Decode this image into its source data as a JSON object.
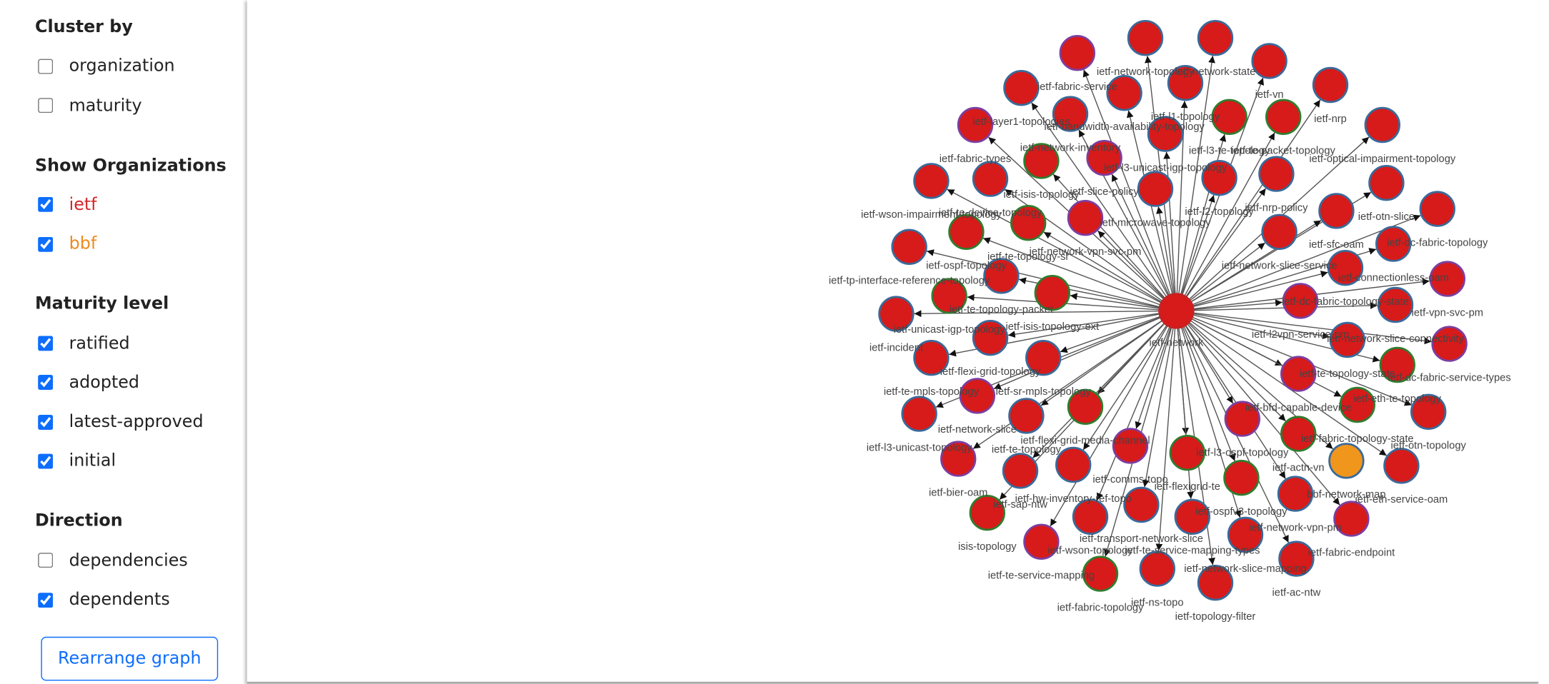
{
  "sidebar": {
    "sections": [
      {
        "title": "Cluster by",
        "options": [
          {
            "label": "organization",
            "checked": false
          },
          {
            "label": "maturity",
            "checked": false
          }
        ]
      },
      {
        "title": "Show Organizations",
        "options": [
          {
            "label": "ietf",
            "checked": true,
            "color": "#d62728"
          },
          {
            "label": "bbf",
            "checked": true,
            "color": "#ee8a1c"
          }
        ]
      },
      {
        "title": "Maturity level",
        "options": [
          {
            "label": "ratified",
            "checked": true
          },
          {
            "label": "adopted",
            "checked": true
          },
          {
            "label": "latest-approved",
            "checked": true
          },
          {
            "label": "initial",
            "checked": true
          }
        ]
      },
      {
        "title": "Direction",
        "options": [
          {
            "label": "dependencies",
            "checked": false
          },
          {
            "label": "dependents",
            "checked": true
          }
        ]
      }
    ],
    "button": "Rearrange graph"
  },
  "graph": {
    "center": "ietf-network",
    "nodes": [
      "ietf-fabric-service",
      "ietf-network-topology",
      "ietf-network-state",
      "ietf-vn",
      "ietf-nrp",
      "ietf-optical-impairment-topology",
      "ietf-layer1-topologies",
      "ietf-bandwidth-availability-topology",
      "ietf-l1-topology",
      "ietf-l3-te-topology",
      "ietf-te-packet-topology",
      "ietf-fabric-types",
      "ietf-network-inventory",
      "ietf-l3-unicast-igp-topology",
      "ietf-isis-topology",
      "ietf-slice-policy",
      "ietf-microwave-topology",
      "ietf-l2-topology",
      "ietf-nrp-policy",
      "ietf-otn-slice",
      "ietf-wson-impairment-topology",
      "ietf-te-device-topology",
      "ietf-sfc-oam",
      "ietf-dc-fabric-topology",
      "ietf-network-vpn-svc-pm",
      "ietf-te-topology-sr",
      "ietf-ospf-topology",
      "ietf-network-slice-service",
      "ietf-connectionless-oam",
      "ietf-tp-interface-reference-topology",
      "ietf-te-topology-packet",
      "ietf-vpn-svc-pm",
      "ietf-dc-fabric-topology-state",
      "ietf-network-slice-connectivity",
      "ietf-l2vpn-service-pm",
      "ietf-unicast-igp-topology",
      "ietf-isis-topology-ext",
      "ietf-incident",
      "ietf-te-topology-state",
      "ietf-dc-fabric-service-types",
      "ietf-flexi-grid-topology",
      "ietf-sr-mpls-topology",
      "ietf-te-mpls-topology",
      "ietf-eth-te-topology",
      "ietf-bfd-capable-device",
      "ietf-network-slice",
      "ietf-l3-unicast-topology",
      "ietf-flexi-grid-media-channel",
      "ietf-te-topology",
      "ietf-fabric-topology-state",
      "ietf-otn-topology",
      "ietf-l3-ospf-topology",
      "ietf-comms-topo",
      "ietf-actn-vn",
      "bbf-network-map",
      "ietf-eth-service-oam",
      "ietf-bier-oam",
      "ietf-flexigrid-te",
      "ietf-hw-inventory-ref-topo",
      "ietf-sap-ntw",
      "ietf-ospfv3-topology",
      "ietf-network-vpn-pm",
      "ietf-transport-network-slice",
      "ietf-te-service-mapping-types",
      "isis-topology",
      "ietf-wson-topology",
      "ietf-fabric-endpoint",
      "ietf-network-slice-mapping",
      "ietf-te-service-mapping",
      "ietf-fabric-topology",
      "ietf-ns-topo",
      "ietf-ac-ntw",
      "ietf-topology-filter"
    ]
  }
}
